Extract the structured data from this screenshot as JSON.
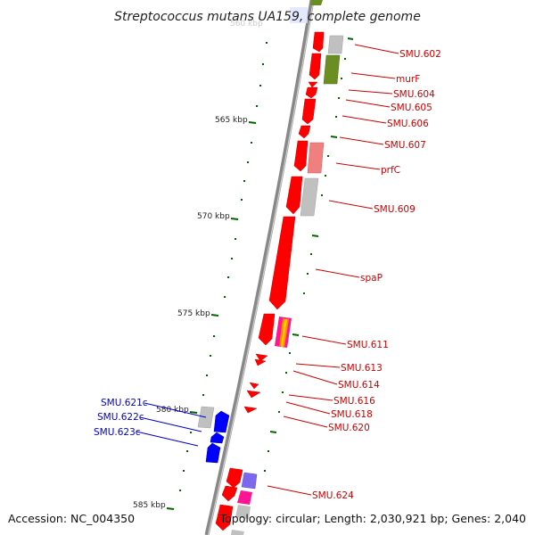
{
  "title": "Streptococcus mutans UA159, complete genome",
  "footer": {
    "accession": "Accession: NC_004350",
    "summary": "Topology: circular; Length: 2,030,921 bp; Genes: 2,040"
  },
  "top_clipped_label": "560 kbp",
  "ticks": [
    {
      "label": "565 kbp"
    },
    {
      "label": "570 kbp"
    },
    {
      "label": "575 kbp"
    },
    {
      "label": "580 kbp"
    },
    {
      "label": "585 kbp"
    }
  ],
  "forward_labels": [
    {
      "text": "SMU.602",
      "color": "#cc0000"
    },
    {
      "text": "murF",
      "color": "#cc0000"
    },
    {
      "text": "SMU.604",
      "color": "#cc0000"
    },
    {
      "text": "SMU.605",
      "color": "#cc0000"
    },
    {
      "text": "SMU.606",
      "color": "#cc0000"
    },
    {
      "text": "SMU.607",
      "color": "#cc0000"
    },
    {
      "text": "prfC",
      "color": "#cc0000"
    },
    {
      "text": "SMU.609",
      "color": "#cc0000"
    },
    {
      "text": "spaP",
      "color": "#cc0000"
    },
    {
      "text": "SMU.611",
      "color": "#cc0000"
    },
    {
      "text": "SMU.613",
      "color": "#cc0000"
    },
    {
      "text": "SMU.614",
      "color": "#cc0000"
    },
    {
      "text": "SMU.616",
      "color": "#cc0000"
    },
    {
      "text": "SMU.618",
      "color": "#cc0000"
    },
    {
      "text": "SMU.620",
      "color": "#cc0000"
    },
    {
      "text": "SMU.624",
      "color": "#cc0000"
    }
  ],
  "reverse_labels": [
    {
      "text": "SMU.621c",
      "color": "#0000cc"
    },
    {
      "text": "SMU.622c",
      "color": "#0000cc"
    },
    {
      "text": "SMU.623c",
      "color": "#0000cc"
    }
  ],
  "colors": {
    "backbone": "#888888",
    "forward_gene": "#ff0000",
    "reverse_gene": "#0000ff",
    "tick": "#006600",
    "function_gray": "#c0c0c0",
    "function_olive": "#6b8e23",
    "function_pink": "#f08080",
    "function_purple": "#7b68ee",
    "function_magenta": "#ff1493",
    "function_orange": "#ff8c00"
  }
}
